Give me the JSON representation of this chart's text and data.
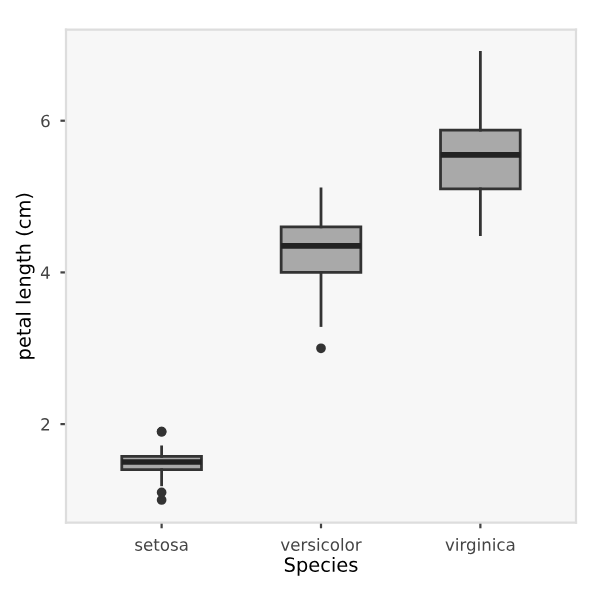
{
  "chart_data": {
    "type": "box",
    "xlabel": "Species",
    "ylabel": "petal length (cm)",
    "categories": [
      "setosa",
      "versicolor",
      "virginica"
    ],
    "boxes": [
      {
        "low": 1.2,
        "q1": 1.4,
        "median": 1.5,
        "q3": 1.575,
        "high": 1.7,
        "outliers": [
          1.0,
          1.1,
          1.9,
          1.9
        ]
      },
      {
        "low": 3.3,
        "q1": 4.0,
        "median": 4.35,
        "q3": 4.6,
        "high": 5.1,
        "outliers": [
          3.0
        ]
      },
      {
        "low": 4.5,
        "q1": 5.1,
        "median": 5.55,
        "q3": 5.875,
        "high": 6.9
      }
    ],
    "color": "#a9a9a9",
    "ylim": [
      0.7,
      7.2
    ],
    "yticks": [
      2,
      4,
      6
    ],
    "grid": false
  }
}
